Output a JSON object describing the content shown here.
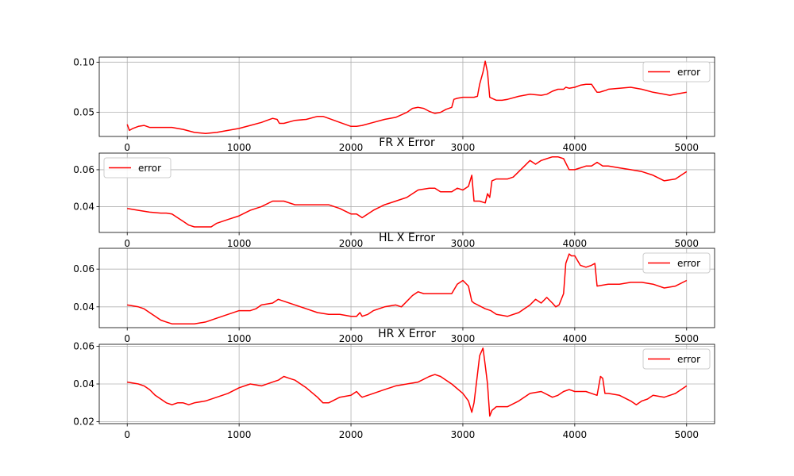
{
  "chart_data": [
    {
      "type": "line",
      "title": "",
      "xlim": [
        -250,
        5250
      ],
      "ylim": [
        0.026,
        0.105
      ],
      "xticks": [
        0,
        1000,
        2000,
        3000,
        4000,
        5000
      ],
      "xtick_labels": [
        "0",
        "1000",
        "2000",
        "3000",
        "4000",
        "5000"
      ],
      "yticks": [
        0.05,
        0.1
      ],
      "ytick_labels": [
        "0.05",
        "0.10"
      ],
      "grid": true,
      "legend_position": "upper right",
      "series": [
        {
          "name": "error",
          "color": "#ff0000",
          "x": [
            0,
            20,
            50,
            100,
            150,
            200,
            300,
            400,
            500,
            600,
            700,
            800,
            900,
            1000,
            1100,
            1200,
            1250,
            1300,
            1340,
            1360,
            1400,
            1500,
            1600,
            1700,
            1750,
            1800,
            1900,
            2000,
            2050,
            2100,
            2200,
            2300,
            2400,
            2500,
            2550,
            2600,
            2650,
            2700,
            2750,
            2800,
            2850,
            2900,
            2920,
            2950,
            3000,
            3050,
            3100,
            3130,
            3150,
            3180,
            3200,
            3220,
            3240,
            3260,
            3300,
            3350,
            3400,
            3500,
            3600,
            3700,
            3750,
            3800,
            3850,
            3900,
            3920,
            3950,
            4000,
            4050,
            4100,
            4150,
            4180,
            4200,
            4220,
            4250,
            4280,
            4300,
            4400,
            4500,
            4600,
            4700,
            4800,
            4850,
            4900,
            5000
          ],
          "y": [
            0.038,
            0.032,
            0.034,
            0.036,
            0.037,
            0.035,
            0.035,
            0.035,
            0.033,
            0.03,
            0.029,
            0.03,
            0.032,
            0.034,
            0.037,
            0.04,
            0.042,
            0.044,
            0.043,
            0.039,
            0.039,
            0.042,
            0.043,
            0.046,
            0.046,
            0.044,
            0.04,
            0.036,
            0.036,
            0.037,
            0.04,
            0.043,
            0.045,
            0.05,
            0.054,
            0.055,
            0.054,
            0.051,
            0.049,
            0.05,
            0.053,
            0.055,
            0.063,
            0.064,
            0.065,
            0.065,
            0.065,
            0.066,
            0.078,
            0.09,
            0.101,
            0.09,
            0.065,
            0.064,
            0.062,
            0.062,
            0.063,
            0.066,
            0.068,
            0.067,
            0.068,
            0.071,
            0.073,
            0.073,
            0.075,
            0.074,
            0.075,
            0.077,
            0.078,
            0.078,
            0.073,
            0.07,
            0.07,
            0.071,
            0.072,
            0.073,
            0.074,
            0.075,
            0.073,
            0.07,
            0.068,
            0.067,
            0.068,
            0.07
          ]
        }
      ]
    },
    {
      "type": "line",
      "title": "FR X Error",
      "xlim": [
        -250,
        5250
      ],
      "ylim": [
        0.026,
        0.069
      ],
      "xticks": [
        0,
        1000,
        2000,
        3000,
        4000,
        5000
      ],
      "xtick_labels": [
        "0",
        "1000",
        "2000",
        "3000",
        "4000",
        "5000"
      ],
      "yticks": [
        0.04,
        0.06
      ],
      "ytick_labels": [
        "0.04",
        "0.06"
      ],
      "grid": true,
      "legend_position": "upper left",
      "series": [
        {
          "name": "error",
          "color": "#ff0000",
          "x": [
            0,
            100,
            200,
            300,
            350,
            400,
            450,
            500,
            550,
            600,
            650,
            700,
            750,
            800,
            900,
            1000,
            1100,
            1200,
            1300,
            1350,
            1400,
            1500,
            1600,
            1700,
            1800,
            1900,
            2000,
            2050,
            2100,
            2150,
            2200,
            2300,
            2400,
            2500,
            2600,
            2700,
            2750,
            2800,
            2900,
            2950,
            3000,
            3050,
            3080,
            3100,
            3150,
            3200,
            3220,
            3240,
            3260,
            3300,
            3350,
            3400,
            3450,
            3500,
            3550,
            3600,
            3650,
            3700,
            3750,
            3800,
            3850,
            3900,
            3950,
            4000,
            4050,
            4100,
            4150,
            4200,
            4250,
            4300,
            4400,
            4500,
            4600,
            4700,
            4800,
            4900,
            5000
          ],
          "y": [
            0.039,
            0.038,
            0.037,
            0.0365,
            0.0365,
            0.036,
            0.034,
            0.032,
            0.03,
            0.029,
            0.029,
            0.029,
            0.029,
            0.031,
            0.033,
            0.035,
            0.038,
            0.04,
            0.043,
            0.043,
            0.043,
            0.041,
            0.041,
            0.041,
            0.041,
            0.039,
            0.036,
            0.036,
            0.034,
            0.036,
            0.038,
            0.041,
            0.043,
            0.045,
            0.049,
            0.05,
            0.05,
            0.048,
            0.048,
            0.05,
            0.049,
            0.051,
            0.057,
            0.043,
            0.043,
            0.042,
            0.047,
            0.045,
            0.054,
            0.055,
            0.055,
            0.055,
            0.056,
            0.059,
            0.062,
            0.065,
            0.063,
            0.065,
            0.066,
            0.067,
            0.067,
            0.066,
            0.06,
            0.06,
            0.061,
            0.062,
            0.062,
            0.064,
            0.062,
            0.062,
            0.061,
            0.06,
            0.059,
            0.057,
            0.054,
            0.055,
            0.059
          ]
        }
      ]
    },
    {
      "type": "line",
      "title": "HL X Error",
      "xlim": [
        -250,
        5250
      ],
      "ylim": [
        0.029,
        0.071
      ],
      "xticks": [
        0,
        1000,
        2000,
        3000,
        4000,
        5000
      ],
      "xtick_labels": [
        "0",
        "1000",
        "2000",
        "3000",
        "4000",
        "5000"
      ],
      "yticks": [
        0.04,
        0.06
      ],
      "ytick_labels": [
        "0.04",
        "0.06"
      ],
      "grid": true,
      "legend_position": "upper right",
      "series": [
        {
          "name": "error",
          "color": "#ff0000",
          "x": [
            0,
            100,
            150,
            200,
            250,
            300,
            350,
            400,
            450,
            500,
            600,
            700,
            800,
            900,
            1000,
            1050,
            1100,
            1150,
            1200,
            1300,
            1350,
            1400,
            1500,
            1600,
            1700,
            1800,
            1900,
            2000,
            2050,
            2080,
            2100,
            2150,
            2200,
            2300,
            2400,
            2450,
            2500,
            2550,
            2600,
            2650,
            2700,
            2750,
            2800,
            2850,
            2900,
            2950,
            3000,
            3050,
            3080,
            3100,
            3200,
            3250,
            3300,
            3400,
            3500,
            3600,
            3650,
            3700,
            3750,
            3800,
            3830,
            3860,
            3900,
            3920,
            3950,
            3970,
            4000,
            4050,
            4100,
            4150,
            4180,
            4200,
            4300,
            4400,
            4500,
            4600,
            4700,
            4800,
            4900,
            5000
          ],
          "y": [
            0.041,
            0.04,
            0.039,
            0.037,
            0.035,
            0.033,
            0.032,
            0.031,
            0.031,
            0.031,
            0.031,
            0.032,
            0.034,
            0.036,
            0.038,
            0.038,
            0.038,
            0.039,
            0.041,
            0.042,
            0.044,
            0.043,
            0.041,
            0.039,
            0.037,
            0.036,
            0.036,
            0.035,
            0.035,
            0.037,
            0.035,
            0.036,
            0.038,
            0.04,
            0.041,
            0.04,
            0.043,
            0.046,
            0.048,
            0.047,
            0.047,
            0.047,
            0.047,
            0.047,
            0.047,
            0.052,
            0.054,
            0.051,
            0.043,
            0.042,
            0.039,
            0.038,
            0.036,
            0.035,
            0.037,
            0.041,
            0.044,
            0.042,
            0.045,
            0.042,
            0.04,
            0.041,
            0.047,
            0.063,
            0.068,
            0.067,
            0.067,
            0.062,
            0.061,
            0.062,
            0.063,
            0.051,
            0.052,
            0.052,
            0.053,
            0.053,
            0.052,
            0.05,
            0.051,
            0.054
          ]
        }
      ]
    },
    {
      "type": "line",
      "title": "HR X Error",
      "xlim": [
        -250,
        5250
      ],
      "ylim": [
        0.019,
        0.061
      ],
      "xticks": [
        0,
        1000,
        2000,
        3000,
        4000,
        5000
      ],
      "xtick_labels": [
        "0",
        "1000",
        "2000",
        "3000",
        "4000",
        "5000"
      ],
      "yticks": [
        0.02,
        0.04,
        0.06
      ],
      "ytick_labels": [
        "0.02",
        "0.04",
        "0.06"
      ],
      "grid": true,
      "legend_position": "upper right",
      "series": [
        {
          "name": "error",
          "color": "#ff0000",
          "x": [
            0,
            100,
            150,
            200,
            250,
            300,
            350,
            400,
            450,
            500,
            550,
            600,
            700,
            800,
            900,
            1000,
            1100,
            1200,
            1300,
            1350,
            1400,
            1450,
            1500,
            1600,
            1700,
            1750,
            1800,
            1900,
            2000,
            2050,
            2080,
            2100,
            2150,
            2200,
            2300,
            2400,
            2500,
            2600,
            2700,
            2750,
            2800,
            2850,
            2900,
            3000,
            3050,
            3080,
            3100,
            3130,
            3150,
            3180,
            3200,
            3220,
            3240,
            3260,
            3280,
            3300,
            3400,
            3500,
            3600,
            3700,
            3800,
            3850,
            3900,
            3950,
            4000,
            4100,
            4150,
            4200,
            4230,
            4250,
            4270,
            4300,
            4400,
            4500,
            4550,
            4600,
            4650,
            4700,
            4800,
            4900,
            5000
          ],
          "y": [
            0.041,
            0.04,
            0.039,
            0.037,
            0.034,
            0.032,
            0.03,
            0.029,
            0.03,
            0.03,
            0.029,
            0.03,
            0.031,
            0.033,
            0.035,
            0.038,
            0.04,
            0.039,
            0.041,
            0.042,
            0.044,
            0.043,
            0.042,
            0.038,
            0.033,
            0.03,
            0.03,
            0.033,
            0.034,
            0.036,
            0.034,
            0.033,
            0.034,
            0.035,
            0.037,
            0.039,
            0.04,
            0.041,
            0.044,
            0.045,
            0.044,
            0.042,
            0.04,
            0.035,
            0.031,
            0.025,
            0.03,
            0.045,
            0.055,
            0.059,
            0.05,
            0.04,
            0.023,
            0.026,
            0.027,
            0.028,
            0.028,
            0.031,
            0.035,
            0.036,
            0.033,
            0.034,
            0.036,
            0.037,
            0.036,
            0.036,
            0.035,
            0.034,
            0.044,
            0.043,
            0.035,
            0.035,
            0.034,
            0.031,
            0.029,
            0.031,
            0.032,
            0.034,
            0.033,
            0.035,
            0.039
          ]
        }
      ]
    }
  ]
}
